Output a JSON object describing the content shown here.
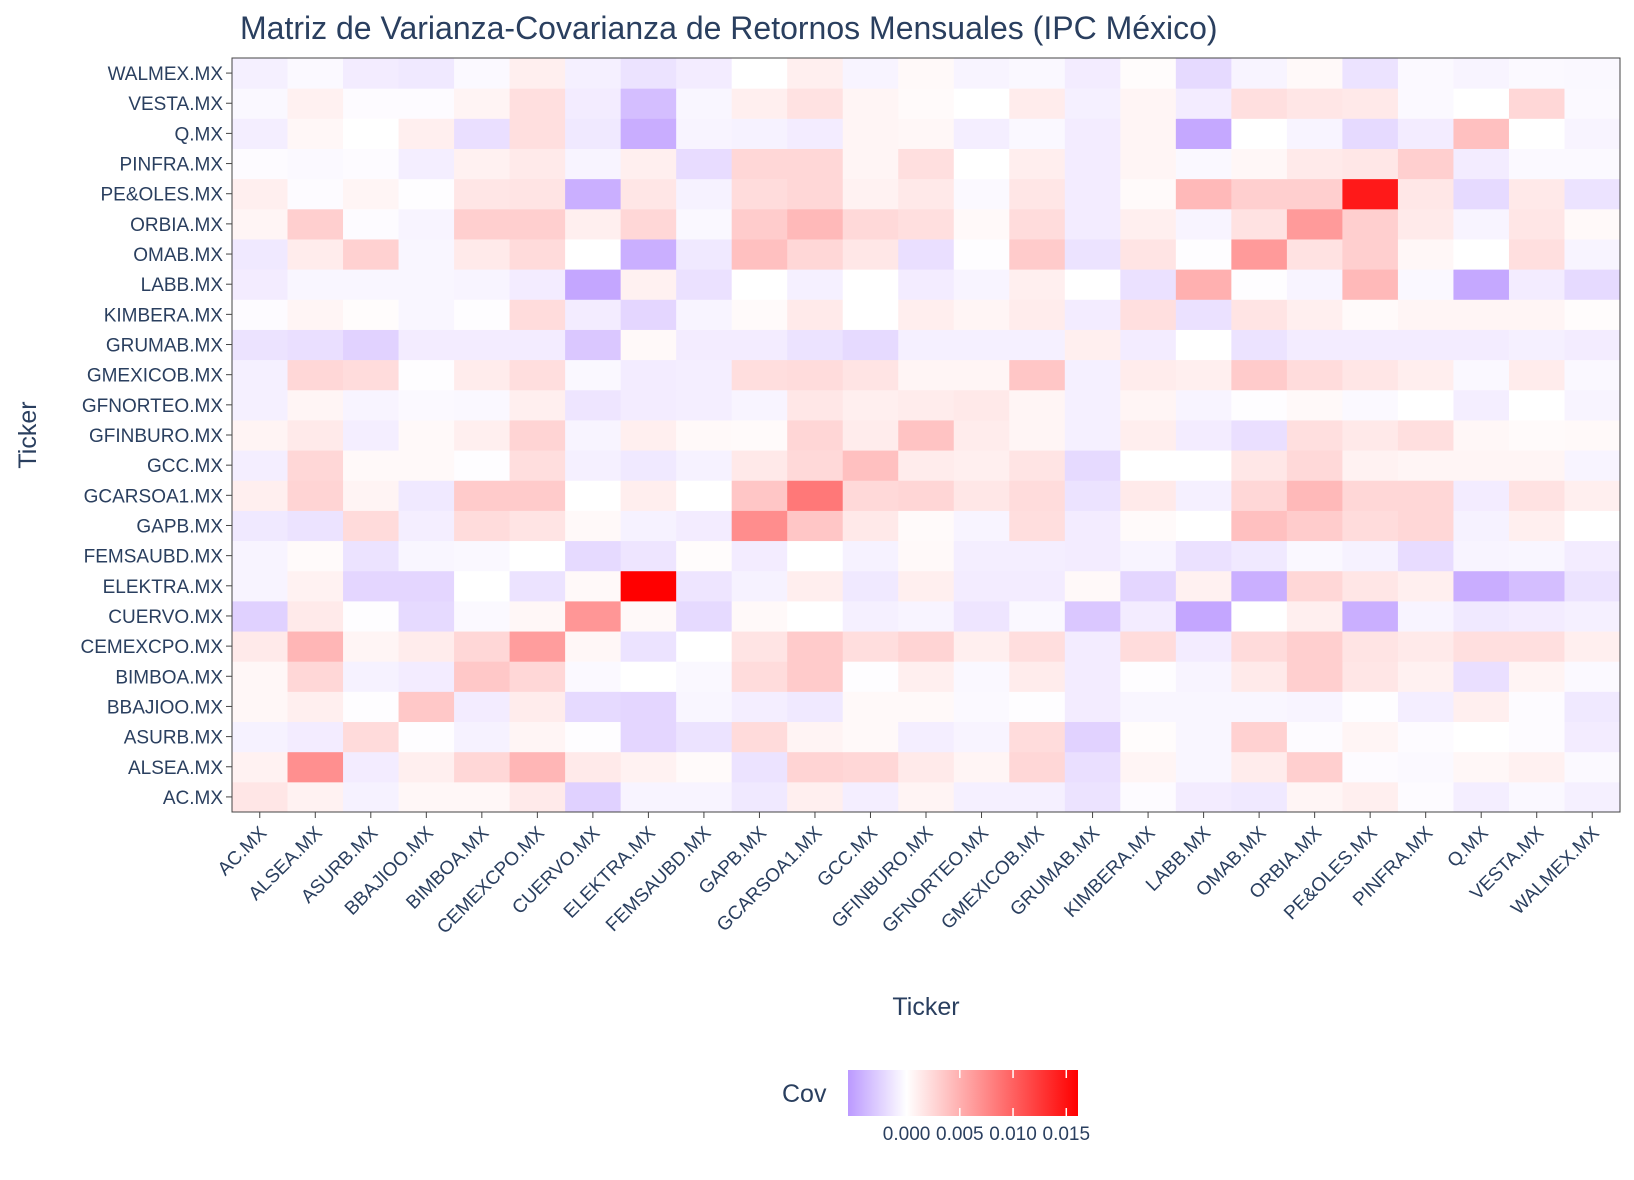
{
  "chart_data": {
    "type": "heatmap",
    "title": "Matriz de Varianza-Covarianza de Retornos Mensuales (IPC México)",
    "xlabel": "Ticker",
    "ylabel": "Ticker",
    "legend_title": "Cov",
    "legend_position": "bottom",
    "colorscale": {
      "min": -0.0055,
      "mid": 0.0,
      "max": 0.0161,
      "low_color": "#bb99ff",
      "mid_color": "#ffffff",
      "high_color": "#ff0000"
    },
    "legend_ticks": [
      {
        "value": 0.0,
        "label": "0.000"
      },
      {
        "value": 0.005,
        "label": "0.005"
      },
      {
        "value": 0.01,
        "label": "0.010"
      },
      {
        "value": 0.015,
        "label": "0.015"
      }
    ],
    "x": [
      "AC.MX",
      "ALSEA.MX",
      "ASURB.MX",
      "BBAJIOO.MX",
      "BIMBOA.MX",
      "CEMEXCPO.MX",
      "CUERVO.MX",
      "ELEKTRA.MX",
      "FEMSAUBD.MX",
      "GAPB.MX",
      "GCARSOA1.MX",
      "GCC.MX",
      "GFINBURO.MX",
      "GFNORTEO.MX",
      "GMEXICOB.MX",
      "GRUMAB.MX",
      "KIMBERA.MX",
      "LABB.MX",
      "OMAB.MX",
      "ORBIA.MX",
      "PE&OLES.MX",
      "PINFRA.MX",
      "Q.MX",
      "VESTA.MX",
      "WALMEX.MX"
    ],
    "y": [
      "AC.MX",
      "ALSEA.MX",
      "ASURB.MX",
      "BBAJIOO.MX",
      "BIMBOA.MX",
      "CEMEXCPO.MX",
      "CUERVO.MX",
      "ELEKTRA.MX",
      "FEMSAUBD.MX",
      "GAPB.MX",
      "GCARSOA1.MX",
      "GCC.MX",
      "GFINBURO.MX",
      "GFNORTEO.MX",
      "GMEXICOB.MX",
      "GRUMAB.MX",
      "KIMBERA.MX",
      "LABB.MX",
      "OMAB.MX",
      "ORBIA.MX",
      "PE&OLES.MX",
      "PINFRA.MX",
      "Q.MX",
      "VESTA.MX",
      "WALMEX.MX"
    ],
    "z": [
      [
        0.0016,
        0.0008,
        -0.0007,
        0.0005,
        0.0005,
        0.0013,
        -0.0025,
        -0.0006,
        -0.0006,
        -0.0012,
        0.001,
        -0.0009,
        0.0007,
        -0.0008,
        -0.0008,
        -0.0015,
        -0.0002,
        -0.001,
        -0.0012,
        0.0006,
        0.001,
        -0.0002,
        -0.0009,
        -0.0004,
        -0.0008
      ],
      [
        0.0008,
        0.0071,
        -0.001,
        0.001,
        0.0025,
        0.0046,
        0.0013,
        0.0008,
        0.0003,
        -0.0015,
        0.0027,
        0.0025,
        0.0013,
        0.0006,
        0.0025,
        -0.0017,
        0.0006,
        -0.0005,
        0.0012,
        0.003,
        -0.0002,
        -0.0003,
        0.0005,
        0.0009,
        -0.0003
      ],
      [
        -0.0007,
        -0.001,
        0.0023,
        -0.0001,
        -0.0007,
        0.0006,
        -0.0001,
        -0.0022,
        -0.0015,
        0.0023,
        0.0007,
        0.0004,
        -0.0009,
        -0.0006,
        0.0022,
        -0.0024,
        0.0002,
        -0.0005,
        0.0029,
        -0.0002,
        0.0006,
        -0.0002,
        0.0,
        -0.0002,
        -0.001
      ],
      [
        0.0005,
        0.001,
        -0.0001,
        0.0035,
        -0.001,
        0.0012,
        -0.002,
        -0.0022,
        -0.0005,
        -0.0009,
        -0.0012,
        0.0004,
        0.0004,
        -0.0003,
        -0.0001,
        -0.001,
        -0.0005,
        -0.0005,
        -0.0005,
        -0.0006,
        -0.0001,
        -0.0009,
        0.001,
        -0.0002,
        -0.0012
      ],
      [
        0.0005,
        0.0025,
        -0.0007,
        -0.001,
        0.0035,
        0.0025,
        -0.0003,
        0.0,
        -0.0004,
        0.0022,
        0.0033,
        -0.0001,
        0.001,
        -0.0004,
        0.0012,
        -0.001,
        -0.0001,
        -0.0006,
        0.0013,
        0.003,
        0.0016,
        0.0009,
        -0.0017,
        0.0007,
        -0.0003
      ],
      [
        0.0013,
        0.0046,
        0.0006,
        0.0012,
        0.0025,
        0.0062,
        0.0005,
        -0.0015,
        0.0,
        0.0017,
        0.0033,
        0.0021,
        0.0027,
        0.001,
        0.0021,
        -0.001,
        0.0022,
        -0.001,
        0.0023,
        0.003,
        0.0017,
        0.0013,
        0.002,
        0.002,
        0.001
      ],
      [
        -0.0025,
        0.0013,
        -0.0001,
        -0.002,
        -0.0003,
        0.0005,
        0.0066,
        0.0004,
        -0.002,
        0.0004,
        0.0,
        -0.0008,
        -0.0006,
        -0.0014,
        -0.0004,
        -0.003,
        -0.001,
        -0.0048,
        0.0,
        0.001,
        -0.0043,
        -0.0006,
        -0.0012,
        -0.001,
        -0.0008
      ],
      [
        -0.0006,
        0.0008,
        -0.0022,
        -0.0022,
        0.0,
        -0.0015,
        0.0004,
        0.0161,
        -0.0014,
        -0.0007,
        0.0011,
        -0.0012,
        0.001,
        -0.001,
        -0.001,
        0.0004,
        -0.0022,
        0.0009,
        -0.0043,
        0.0025,
        0.0016,
        0.001,
        -0.0044,
        -0.0035,
        -0.0015
      ],
      [
        -0.0006,
        0.0003,
        -0.0015,
        -0.0005,
        -0.0004,
        0.0,
        -0.002,
        -0.0014,
        0.0002,
        -0.001,
        0.0,
        -0.0007,
        0.0004,
        -0.0009,
        -0.0009,
        -0.001,
        -0.0006,
        -0.0016,
        -0.0012,
        -0.0004,
        -0.0007,
        -0.0019,
        -0.0006,
        -0.0005,
        -0.001
      ],
      [
        -0.0012,
        -0.0015,
        0.0023,
        -0.0009,
        0.0022,
        0.0017,
        0.0004,
        -0.0007,
        -0.001,
        0.0072,
        0.0036,
        0.0014,
        0.0003,
        -0.0006,
        0.0021,
        -0.001,
        0.0003,
        0.0,
        0.004,
        0.0032,
        0.0022,
        0.0025,
        -0.0007,
        0.001,
        0.0
      ],
      [
        0.001,
        0.0027,
        0.0007,
        -0.0012,
        0.0033,
        0.0033,
        0.0,
        0.0011,
        0.0,
        0.0036,
        0.0085,
        0.0024,
        0.0026,
        0.0015,
        0.0022,
        -0.0015,
        0.0013,
        -0.0008,
        0.0025,
        0.0044,
        0.0025,
        0.0025,
        -0.001,
        0.0018,
        0.001
      ],
      [
        -0.0009,
        0.0025,
        0.0004,
        0.0004,
        -0.0001,
        0.0021,
        -0.0008,
        -0.0012,
        -0.0007,
        0.0014,
        0.0024,
        0.004,
        0.0012,
        0.001,
        0.0017,
        -0.002,
        0.0,
        0.0,
        0.0015,
        0.0024,
        0.0008,
        0.0006,
        0.0006,
        0.0006,
        -0.0006
      ],
      [
        0.0007,
        0.0013,
        -0.0009,
        0.0004,
        0.001,
        0.0027,
        -0.0006,
        0.001,
        0.0004,
        0.0003,
        0.0026,
        0.0012,
        0.0038,
        0.0012,
        0.0006,
        -0.0008,
        0.0011,
        -0.001,
        -0.0017,
        0.002,
        0.0014,
        0.002,
        0.0005,
        0.0003,
        0.0004
      ],
      [
        -0.0008,
        0.0006,
        -0.0006,
        -0.0003,
        -0.0004,
        0.001,
        -0.0014,
        -0.001,
        -0.0009,
        -0.0006,
        0.0015,
        0.001,
        0.0012,
        0.0014,
        0.0006,
        -0.0008,
        0.0006,
        -0.0006,
        -0.0001,
        0.0004,
        -0.0003,
        0.0,
        -0.0009,
        0.0,
        -0.0006
      ],
      [
        -0.0008,
        0.0025,
        0.0022,
        -0.0001,
        0.0012,
        0.0021,
        -0.0004,
        -0.001,
        -0.0009,
        0.0021,
        0.0022,
        0.0017,
        0.0006,
        0.0006,
        0.0036,
        -0.0008,
        0.0012,
        0.001,
        0.0033,
        0.0022,
        0.0016,
        0.0011,
        -0.0004,
        0.0012,
        -0.0004
      ],
      [
        -0.0015,
        -0.0017,
        -0.0024,
        -0.001,
        -0.001,
        -0.001,
        -0.003,
        0.0004,
        -0.001,
        -0.001,
        -0.0015,
        -0.002,
        -0.0008,
        -0.0008,
        -0.0008,
        0.001,
        -0.001,
        0.0,
        -0.0015,
        -0.001,
        -0.001,
        -0.001,
        -0.001,
        -0.0008,
        -0.001
      ],
      [
        -0.0002,
        0.0006,
        0.0002,
        -0.0005,
        -0.0001,
        0.0022,
        -0.001,
        -0.0022,
        -0.0006,
        0.0003,
        0.0013,
        0.0,
        0.0011,
        0.0006,
        0.0012,
        -0.001,
        0.002,
        -0.0016,
        0.0017,
        0.001,
        0.0003,
        0.0006,
        0.0006,
        0.0006,
        0.0002
      ],
      [
        -0.001,
        -0.0005,
        -0.0005,
        -0.0005,
        -0.0006,
        -0.001,
        -0.0048,
        0.0009,
        -0.0016,
        0.0,
        -0.0008,
        0.0,
        -0.001,
        -0.0006,
        0.001,
        0.0,
        -0.0016,
        0.005,
        -0.0001,
        -0.0006,
        0.0044,
        -0.0004,
        -0.0047,
        -0.001,
        -0.002
      ],
      [
        -0.0012,
        0.0012,
        0.0029,
        -0.0005,
        0.0013,
        0.0023,
        0.0,
        -0.0043,
        -0.0012,
        0.004,
        0.0025,
        0.0015,
        -0.0017,
        -0.0001,
        0.0033,
        -0.0015,
        0.0017,
        -0.0001,
        0.0064,
        0.0018,
        0.003,
        0.0005,
        0.0,
        0.002,
        -0.0006
      ],
      [
        0.0006,
        0.003,
        -0.0002,
        -0.0006,
        0.003,
        0.003,
        0.001,
        0.0025,
        -0.0004,
        0.0032,
        0.0044,
        0.0024,
        0.002,
        0.0004,
        0.0022,
        -0.001,
        0.001,
        -0.0006,
        0.0018,
        0.0064,
        0.003,
        0.0013,
        -0.0006,
        0.0016,
        0.0004
      ],
      [
        0.001,
        -0.0002,
        0.0006,
        -0.0001,
        0.0016,
        0.0017,
        -0.0043,
        0.0016,
        -0.0007,
        0.0022,
        0.0025,
        0.0008,
        0.0014,
        -0.0003,
        0.0016,
        -0.001,
        0.0003,
        0.0044,
        0.003,
        0.003,
        0.0145,
        0.0015,
        -0.002,
        0.0014,
        -0.0015
      ],
      [
        -0.0002,
        -0.0003,
        -0.0002,
        -0.0009,
        0.0009,
        0.0013,
        -0.0006,
        0.001,
        -0.0019,
        0.0025,
        0.0025,
        0.0006,
        0.002,
        0.0,
        0.0011,
        -0.001,
        0.0006,
        -0.0004,
        0.0005,
        0.0013,
        0.0015,
        0.003,
        -0.001,
        -0.0003,
        -0.0003
      ],
      [
        -0.0009,
        0.0005,
        0.0,
        0.001,
        -0.0017,
        0.002,
        -0.0012,
        -0.0044,
        -0.0006,
        -0.0007,
        -0.001,
        0.0006,
        0.0005,
        -0.0009,
        -0.0004,
        -0.001,
        0.0006,
        -0.0047,
        0.0,
        -0.0006,
        -0.002,
        -0.001,
        0.004,
        0.0,
        -0.0006
      ],
      [
        -0.0004,
        0.0009,
        -0.0002,
        -0.0002,
        0.0007,
        0.002,
        -0.001,
        -0.0035,
        -0.0005,
        0.001,
        0.0018,
        0.0006,
        0.0003,
        0.0,
        0.0012,
        -0.0008,
        0.0006,
        -0.001,
        0.002,
        0.0016,
        0.0014,
        -0.0003,
        0.0,
        0.0025,
        -0.0003
      ],
      [
        -0.0008,
        -0.0003,
        -0.001,
        -0.0012,
        -0.0003,
        0.001,
        -0.0008,
        -0.0015,
        -0.001,
        0.0,
        0.001,
        -0.0006,
        0.0004,
        -0.0006,
        -0.0004,
        -0.001,
        0.0002,
        -0.002,
        -0.0006,
        0.0004,
        -0.0015,
        -0.0003,
        -0.0006,
        -0.0003,
        -0.0004
      ]
    ]
  }
}
